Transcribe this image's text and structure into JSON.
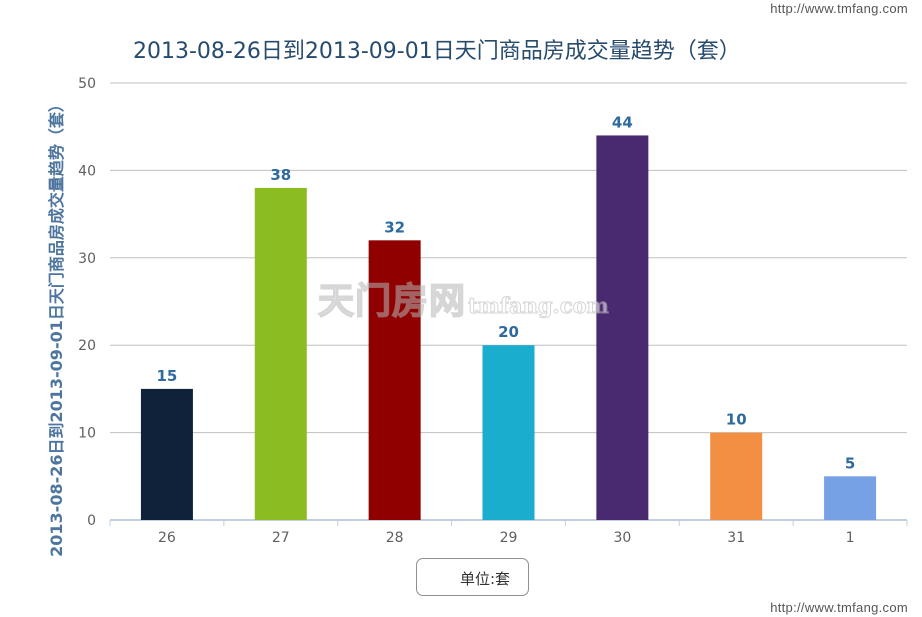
{
  "watermark_url": "http://www.tmfang.com",
  "logo": {
    "cn": "天门房网",
    "en": "tmfang.com"
  },
  "legend": {
    "label": "单位:套"
  },
  "chart_data": {
    "type": "bar",
    "title": "2013-08-26日到2013-09-01日天门商品房成交量趋势（套）",
    "xlabel": "",
    "ylabel": "2013-08-26日到2013-09-01日天门商品房成交量趋势（套）",
    "categories": [
      "26",
      "27",
      "28",
      "29",
      "30",
      "31",
      "1"
    ],
    "values": [
      15,
      38,
      32,
      20,
      44,
      10,
      5
    ],
    "colors": [
      "#0f2239",
      "#8bbc21",
      "#910000",
      "#1aadce",
      "#492970",
      "#f28f43",
      "#77a1e5"
    ],
    "ylim": [
      0,
      50
    ],
    "yticks": [
      0,
      10,
      20,
      30,
      40,
      50
    ],
    "grid": true,
    "data_labels": true,
    "legend_position": "bottom-center"
  }
}
